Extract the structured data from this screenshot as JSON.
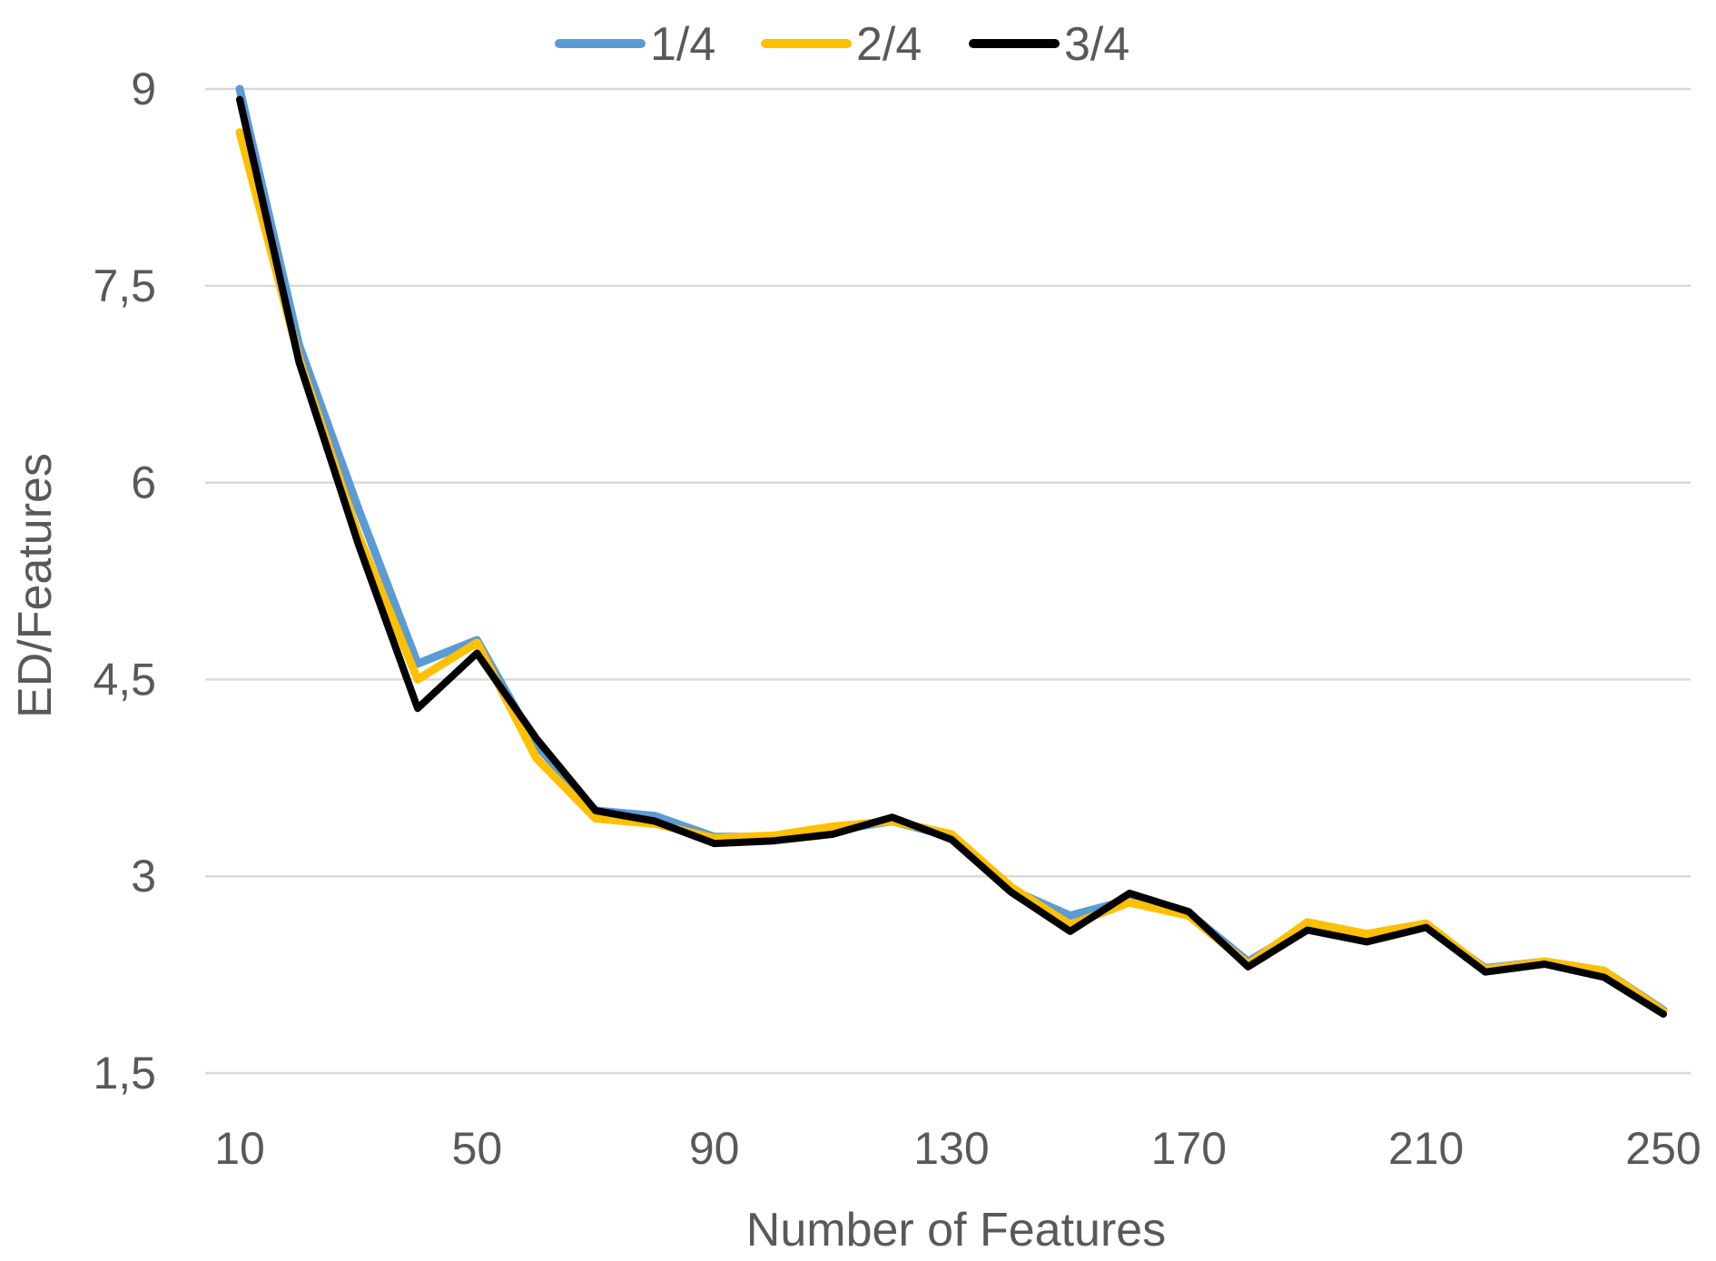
{
  "chart_data": {
    "type": "line",
    "title": "",
    "xlabel": "Number of Features",
    "ylabel": "ED/Features",
    "x": [
      10,
      20,
      30,
      40,
      50,
      60,
      70,
      80,
      90,
      100,
      110,
      120,
      130,
      140,
      150,
      160,
      170,
      180,
      190,
      200,
      210,
      220,
      230,
      240,
      250
    ],
    "xlim": [
      10,
      250
    ],
    "ylim": [
      1.5,
      9
    ],
    "x_ticks": [
      10,
      50,
      90,
      130,
      170,
      210,
      250
    ],
    "x_tick_labels": [
      "10",
      "50",
      "90",
      "130",
      "170",
      "210",
      "250"
    ],
    "y_ticks": [
      1.5,
      3,
      4.5,
      6,
      7.5,
      9
    ],
    "y_tick_labels": [
      "1,5",
      "3",
      "4,5",
      "6",
      "7,5",
      "9"
    ],
    "grid": "horizontal",
    "legend_position": "top",
    "series": [
      {
        "name": "1/4",
        "color": "#5b9bd5",
        "values": [
          9.0,
          7.05,
          5.8,
          4.62,
          4.8,
          4.0,
          3.5,
          3.46,
          3.3,
          3.3,
          3.35,
          3.42,
          3.3,
          2.9,
          2.7,
          2.82,
          2.72,
          2.35,
          2.62,
          2.55,
          2.62,
          2.3,
          2.35,
          2.28,
          1.98
        ]
      },
      {
        "name": "2/4",
        "color": "#ffc000",
        "values": [
          8.67,
          6.95,
          5.6,
          4.5,
          4.78,
          3.9,
          3.44,
          3.4,
          3.29,
          3.31,
          3.38,
          3.42,
          3.32,
          2.92,
          2.63,
          2.8,
          2.7,
          2.33,
          2.65,
          2.56,
          2.64,
          2.29,
          2.35,
          2.28,
          1.97
        ]
      },
      {
        "name": "3/4",
        "color": "#000000",
        "values": [
          8.92,
          6.92,
          5.53,
          4.28,
          4.7,
          4.05,
          3.5,
          3.42,
          3.25,
          3.27,
          3.32,
          3.45,
          3.28,
          2.88,
          2.58,
          2.87,
          2.73,
          2.31,
          2.59,
          2.5,
          2.61,
          2.27,
          2.33,
          2.23,
          1.95
        ]
      }
    ]
  }
}
